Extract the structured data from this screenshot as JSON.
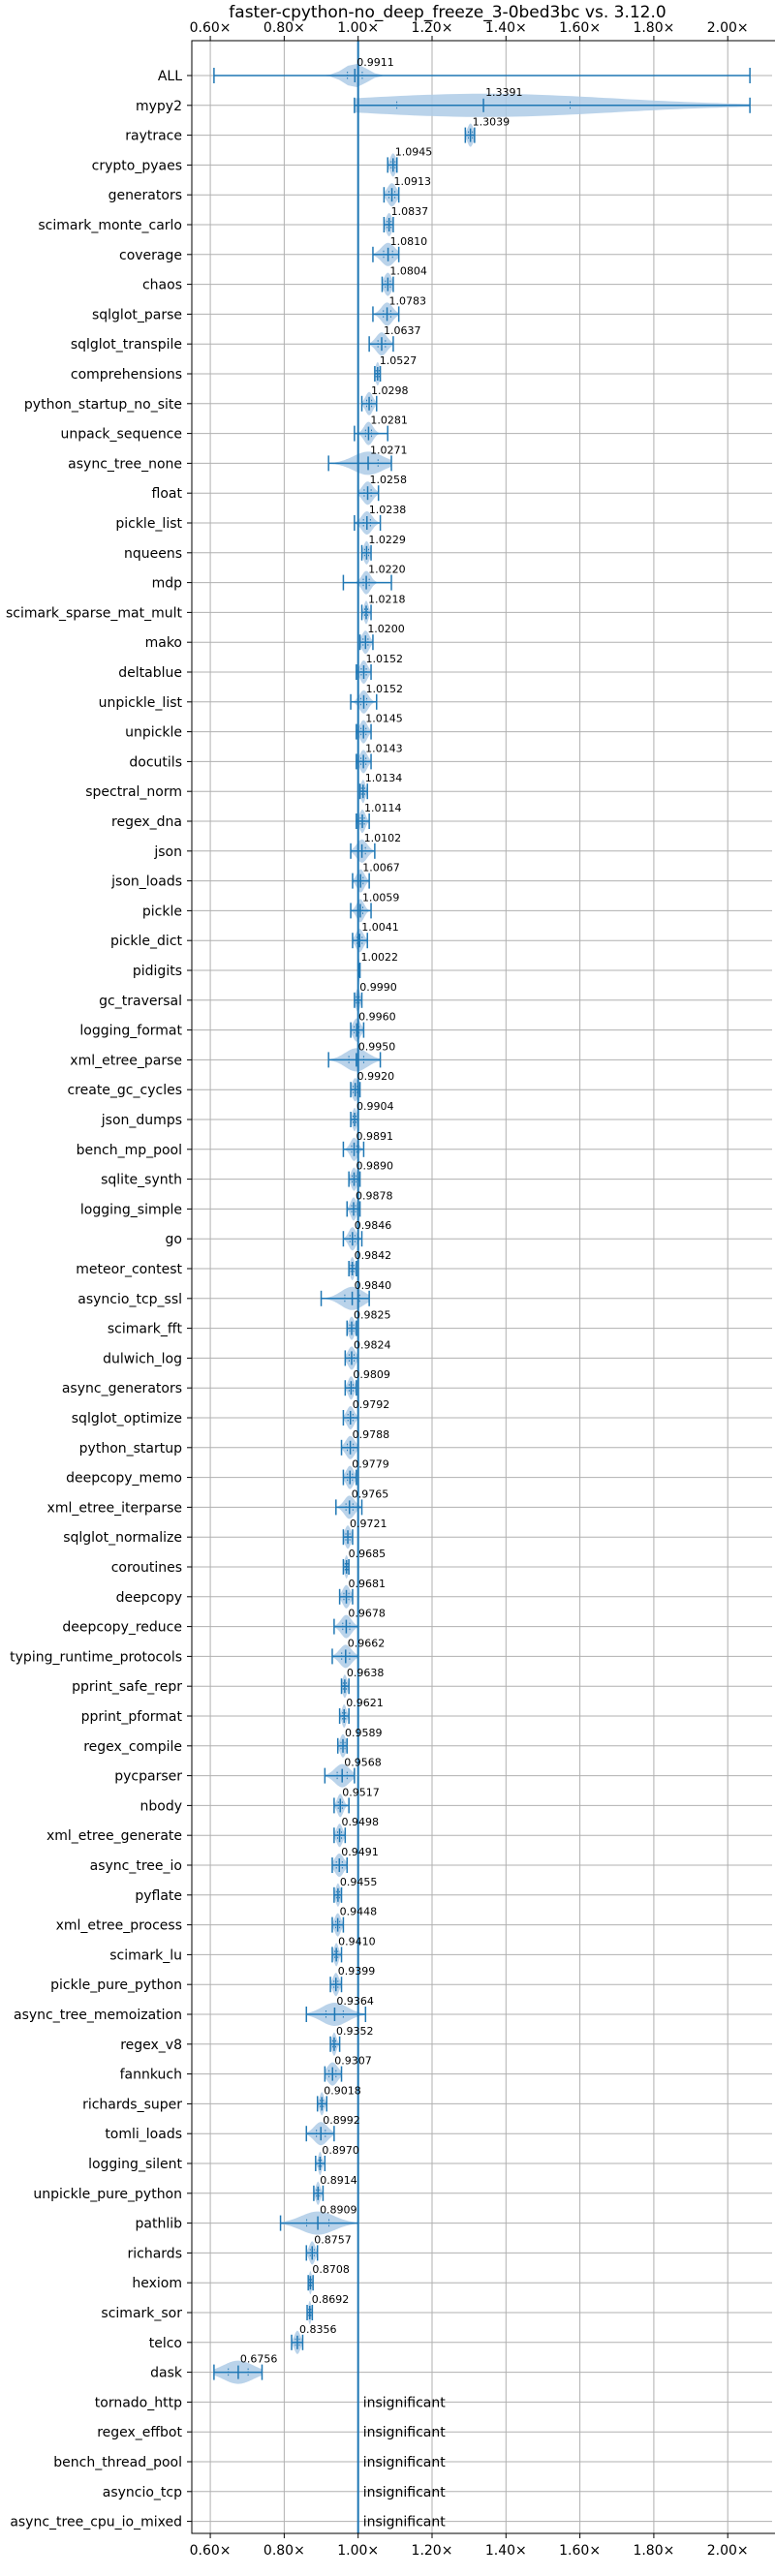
{
  "chart_data": {
    "type": "violin",
    "title": "faster-cpython-no_deep_freeze_3-0bed3bc vs. 3.12.0",
    "xlim": [
      0.55,
      2.12
    ],
    "x_ticks": [
      0.6,
      0.8,
      1.0,
      1.2,
      1.4,
      1.6,
      1.8,
      2.0
    ],
    "x_tick_labels": [
      "0.60×",
      "0.80×",
      "1.00×",
      "1.20×",
      "1.40×",
      "1.60×",
      "1.80×",
      "2.00×"
    ],
    "grid": true,
    "reference_line": 1.0,
    "colors": {
      "violin": "#aecbe6",
      "line": "#1f77b4",
      "grid": "#b0b0b0"
    },
    "benchmarks": [
      {
        "name": "ALL",
        "value": 0.9911,
        "label": "0.9911",
        "min": 0.61,
        "max": 2.06,
        "spread": 0.03
      },
      {
        "name": "mypy2",
        "value": 1.3391,
        "label": "1.3391",
        "min": 0.99,
        "max": 2.06,
        "spread": 0.35
      },
      {
        "name": "raytrace",
        "value": 1.3039,
        "label": "1.3039",
        "min": 1.29,
        "max": 1.315,
        "spread": 0.008
      },
      {
        "name": "crypto_pyaes",
        "value": 1.0945,
        "label": "1.0945",
        "min": 1.08,
        "max": 1.105,
        "spread": 0.008
      },
      {
        "name": "generators",
        "value": 1.0913,
        "label": "1.0913",
        "min": 1.07,
        "max": 1.11,
        "spread": 0.012
      },
      {
        "name": "scimark_monte_carlo",
        "value": 1.0837,
        "label": "1.0837",
        "min": 1.07,
        "max": 1.095,
        "spread": 0.008
      },
      {
        "name": "coverage",
        "value": 1.081,
        "label": "1.0810",
        "min": 1.04,
        "max": 1.11,
        "spread": 0.018
      },
      {
        "name": "chaos",
        "value": 1.0804,
        "label": "1.0804",
        "min": 1.065,
        "max": 1.095,
        "spread": 0.01
      },
      {
        "name": "sqlglot_parse",
        "value": 1.0783,
        "label": "1.0783",
        "min": 1.04,
        "max": 1.11,
        "spread": 0.015
      },
      {
        "name": "sqlglot_transpile",
        "value": 1.0637,
        "label": "1.0637",
        "min": 1.03,
        "max": 1.095,
        "spread": 0.015
      },
      {
        "name": "comprehensions",
        "value": 1.0527,
        "label": "1.0527",
        "min": 1.045,
        "max": 1.06,
        "spread": 0.006
      },
      {
        "name": "python_startup_no_site",
        "value": 1.0298,
        "label": "1.0298",
        "min": 1.01,
        "max": 1.05,
        "spread": 0.01
      },
      {
        "name": "unpack_sequence",
        "value": 1.0281,
        "label": "1.0281",
        "min": 0.99,
        "max": 1.08,
        "spread": 0.012
      },
      {
        "name": "async_tree_none",
        "value": 1.0271,
        "label": "1.0271",
        "min": 0.92,
        "max": 1.09,
        "spread": 0.04
      },
      {
        "name": "float",
        "value": 1.0258,
        "label": "1.0258",
        "min": 1.0,
        "max": 1.055,
        "spread": 0.014
      },
      {
        "name": "pickle_list",
        "value": 1.0238,
        "label": "1.0238",
        "min": 0.99,
        "max": 1.06,
        "spread": 0.014
      },
      {
        "name": "nqueens",
        "value": 1.0229,
        "label": "1.0229",
        "min": 1.01,
        "max": 1.035,
        "spread": 0.008
      },
      {
        "name": "mdp",
        "value": 1.022,
        "label": "1.0220",
        "min": 0.96,
        "max": 1.09,
        "spread": 0.012
      },
      {
        "name": "scimark_sparse_mat_mult",
        "value": 1.0218,
        "label": "1.0218",
        "min": 1.01,
        "max": 1.035,
        "spread": 0.006
      },
      {
        "name": "mako",
        "value": 1.02,
        "label": "1.0200",
        "min": 1.005,
        "max": 1.04,
        "spread": 0.01
      },
      {
        "name": "deltablue",
        "value": 1.0152,
        "label": "1.0152",
        "min": 0.995,
        "max": 1.035,
        "spread": 0.01
      },
      {
        "name": "unpickle_list",
        "value": 1.0152,
        "label": "1.0152",
        "min": 0.98,
        "max": 1.05,
        "spread": 0.012
      },
      {
        "name": "unpickle",
        "value": 1.0145,
        "label": "1.0145",
        "min": 0.995,
        "max": 1.035,
        "spread": 0.01
      },
      {
        "name": "docutils",
        "value": 1.0143,
        "label": "1.0143",
        "min": 0.995,
        "max": 1.035,
        "spread": 0.01
      },
      {
        "name": "spectral_norm",
        "value": 1.0134,
        "label": "1.0134",
        "min": 1.005,
        "max": 1.025,
        "spread": 0.006
      },
      {
        "name": "regex_dna",
        "value": 1.0114,
        "label": "1.0114",
        "min": 0.995,
        "max": 1.03,
        "spread": 0.008
      },
      {
        "name": "json",
        "value": 1.0102,
        "label": "1.0102",
        "min": 0.98,
        "max": 1.045,
        "spread": 0.014
      },
      {
        "name": "json_loads",
        "value": 1.0067,
        "label": "1.0067",
        "min": 0.985,
        "max": 1.03,
        "spread": 0.01
      },
      {
        "name": "pickle",
        "value": 1.0059,
        "label": "1.0059",
        "min": 0.98,
        "max": 1.035,
        "spread": 0.01
      },
      {
        "name": "pickle_dict",
        "value": 1.0041,
        "label": "1.0041",
        "min": 0.985,
        "max": 1.025,
        "spread": 0.01
      },
      {
        "name": "pidigits",
        "value": 1.0022,
        "label": "1.0022",
        "min": 1.0,
        "max": 1.005,
        "spread": 0.002
      },
      {
        "name": "gc_traversal",
        "value": 0.999,
        "label": "0.9990",
        "min": 0.99,
        "max": 1.01,
        "spread": 0.006
      },
      {
        "name": "logging_format",
        "value": 0.996,
        "label": "0.9960",
        "min": 0.98,
        "max": 1.015,
        "spread": 0.01
      },
      {
        "name": "xml_etree_parse",
        "value": 0.995,
        "label": "0.9950",
        "min": 0.92,
        "max": 1.06,
        "spread": 0.03
      },
      {
        "name": "create_gc_cycles",
        "value": 0.992,
        "label": "0.9920",
        "min": 0.98,
        "max": 1.005,
        "spread": 0.008
      },
      {
        "name": "json_dumps",
        "value": 0.9904,
        "label": "0.9904",
        "min": 0.98,
        "max": 1.0,
        "spread": 0.006
      },
      {
        "name": "bench_mp_pool",
        "value": 0.9891,
        "label": "0.9891",
        "min": 0.96,
        "max": 1.015,
        "spread": 0.01
      },
      {
        "name": "sqlite_synth",
        "value": 0.989,
        "label": "0.9890",
        "min": 0.975,
        "max": 1.005,
        "spread": 0.008
      },
      {
        "name": "logging_simple",
        "value": 0.9878,
        "label": "0.9878",
        "min": 0.97,
        "max": 1.005,
        "spread": 0.008
      },
      {
        "name": "go",
        "value": 0.9846,
        "label": "0.9846",
        "min": 0.96,
        "max": 1.01,
        "spread": 0.01
      },
      {
        "name": "meteor_contest",
        "value": 0.9842,
        "label": "0.9842",
        "min": 0.975,
        "max": 0.995,
        "spread": 0.006
      },
      {
        "name": "asyncio_tcp_ssl",
        "value": 0.984,
        "label": "0.9840",
        "min": 0.9,
        "max": 1.03,
        "spread": 0.03
      },
      {
        "name": "scimark_fft",
        "value": 0.9825,
        "label": "0.9825",
        "min": 0.97,
        "max": 0.995,
        "spread": 0.008
      },
      {
        "name": "dulwich_log",
        "value": 0.9824,
        "label": "0.9824",
        "min": 0.965,
        "max": 1.0,
        "spread": 0.01
      },
      {
        "name": "async_generators",
        "value": 0.9809,
        "label": "0.9809",
        "min": 0.965,
        "max": 0.995,
        "spread": 0.008
      },
      {
        "name": "sqlglot_optimize",
        "value": 0.9792,
        "label": "0.9792",
        "min": 0.96,
        "max": 1.0,
        "spread": 0.01
      },
      {
        "name": "python_startup",
        "value": 0.9788,
        "label": "0.9788",
        "min": 0.955,
        "max": 1.0,
        "spread": 0.012
      },
      {
        "name": "deepcopy_memo",
        "value": 0.9779,
        "label": "0.9779",
        "min": 0.96,
        "max": 0.995,
        "spread": 0.01
      },
      {
        "name": "xml_etree_iterparse",
        "value": 0.9765,
        "label": "0.9765",
        "min": 0.94,
        "max": 1.01,
        "spread": 0.014
      },
      {
        "name": "sqlglot_normalize",
        "value": 0.9721,
        "label": "0.9721",
        "min": 0.96,
        "max": 0.985,
        "spread": 0.008
      },
      {
        "name": "coroutines",
        "value": 0.9685,
        "label": "0.9685",
        "min": 0.96,
        "max": 0.975,
        "spread": 0.005
      },
      {
        "name": "deepcopy",
        "value": 0.9681,
        "label": "0.9681",
        "min": 0.95,
        "max": 0.985,
        "spread": 0.01
      },
      {
        "name": "deepcopy_reduce",
        "value": 0.9678,
        "label": "0.9678",
        "min": 0.935,
        "max": 1.0,
        "spread": 0.014
      },
      {
        "name": "typing_runtime_protocols",
        "value": 0.9662,
        "label": "0.9662",
        "min": 0.93,
        "max": 1.0,
        "spread": 0.016
      },
      {
        "name": "pprint_safe_repr",
        "value": 0.9638,
        "label": "0.9638",
        "min": 0.955,
        "max": 0.975,
        "spread": 0.006
      },
      {
        "name": "pprint_pformat",
        "value": 0.9621,
        "label": "0.9621",
        "min": 0.95,
        "max": 0.975,
        "spread": 0.006
      },
      {
        "name": "regex_compile",
        "value": 0.9589,
        "label": "0.9589",
        "min": 0.945,
        "max": 0.97,
        "spread": 0.008
      },
      {
        "name": "pycparser",
        "value": 0.9568,
        "label": "0.9568",
        "min": 0.91,
        "max": 0.99,
        "spread": 0.02
      },
      {
        "name": "nbody",
        "value": 0.9517,
        "label": "0.9517",
        "min": 0.935,
        "max": 0.975,
        "spread": 0.008
      },
      {
        "name": "xml_etree_generate",
        "value": 0.9498,
        "label": "0.9498",
        "min": 0.935,
        "max": 0.965,
        "spread": 0.008
      },
      {
        "name": "async_tree_io",
        "value": 0.9491,
        "label": "0.9491",
        "min": 0.93,
        "max": 0.97,
        "spread": 0.012
      },
      {
        "name": "pyflate",
        "value": 0.9455,
        "label": "0.9455",
        "min": 0.935,
        "max": 0.955,
        "spread": 0.006
      },
      {
        "name": "xml_etree_process",
        "value": 0.9448,
        "label": "0.9448",
        "min": 0.93,
        "max": 0.96,
        "spread": 0.008
      },
      {
        "name": "scimark_lu",
        "value": 0.941,
        "label": "0.9410",
        "min": 0.93,
        "max": 0.955,
        "spread": 0.006
      },
      {
        "name": "pickle_pure_python",
        "value": 0.9399,
        "label": "0.9399",
        "min": 0.925,
        "max": 0.955,
        "spread": 0.008
      },
      {
        "name": "async_tree_memoization",
        "value": 0.9364,
        "label": "0.9364",
        "min": 0.86,
        "max": 1.02,
        "spread": 0.035
      },
      {
        "name": "regex_v8",
        "value": 0.9352,
        "label": "0.9352",
        "min": 0.925,
        "max": 0.95,
        "spread": 0.006
      },
      {
        "name": "fannkuch",
        "value": 0.9307,
        "label": "0.9307",
        "min": 0.91,
        "max": 0.955,
        "spread": 0.014
      },
      {
        "name": "richards_super",
        "value": 0.9018,
        "label": "0.9018",
        "min": 0.89,
        "max": 0.915,
        "spread": 0.006
      },
      {
        "name": "tomli_loads",
        "value": 0.8992,
        "label": "0.8992",
        "min": 0.86,
        "max": 0.935,
        "spread": 0.018
      },
      {
        "name": "logging_silent",
        "value": 0.897,
        "label": "0.8970",
        "min": 0.885,
        "max": 0.91,
        "spread": 0.005
      },
      {
        "name": "unpickle_pure_python",
        "value": 0.8914,
        "label": "0.8914",
        "min": 0.88,
        "max": 0.905,
        "spread": 0.006
      },
      {
        "name": "pathlib",
        "value": 0.8909,
        "label": "0.8909",
        "min": 0.79,
        "max": 1.0,
        "spread": 0.045
      },
      {
        "name": "richards",
        "value": 0.8757,
        "label": "0.8757",
        "min": 0.86,
        "max": 0.89,
        "spread": 0.008
      },
      {
        "name": "hexiom",
        "value": 0.8708,
        "label": "0.8708",
        "min": 0.865,
        "max": 0.878,
        "spread": 0.004
      },
      {
        "name": "scimark_sor",
        "value": 0.8692,
        "label": "0.8692",
        "min": 0.862,
        "max": 0.876,
        "spread": 0.004
      },
      {
        "name": "telco",
        "value": 0.8356,
        "label": "0.8356",
        "min": 0.82,
        "max": 0.85,
        "spread": 0.008
      },
      {
        "name": "dask",
        "value": 0.6756,
        "label": "0.6756",
        "min": 0.61,
        "max": 0.74,
        "spread": 0.04
      },
      {
        "name": "tornado_http",
        "value": null,
        "label": "insignificant"
      },
      {
        "name": "regex_effbot",
        "value": null,
        "label": "insignificant"
      },
      {
        "name": "bench_thread_pool",
        "value": null,
        "label": "insignificant"
      },
      {
        "name": "asyncio_tcp",
        "value": null,
        "label": "insignificant"
      },
      {
        "name": "async_tree_cpu_io_mixed",
        "value": null,
        "label": "insignificant"
      }
    ]
  }
}
